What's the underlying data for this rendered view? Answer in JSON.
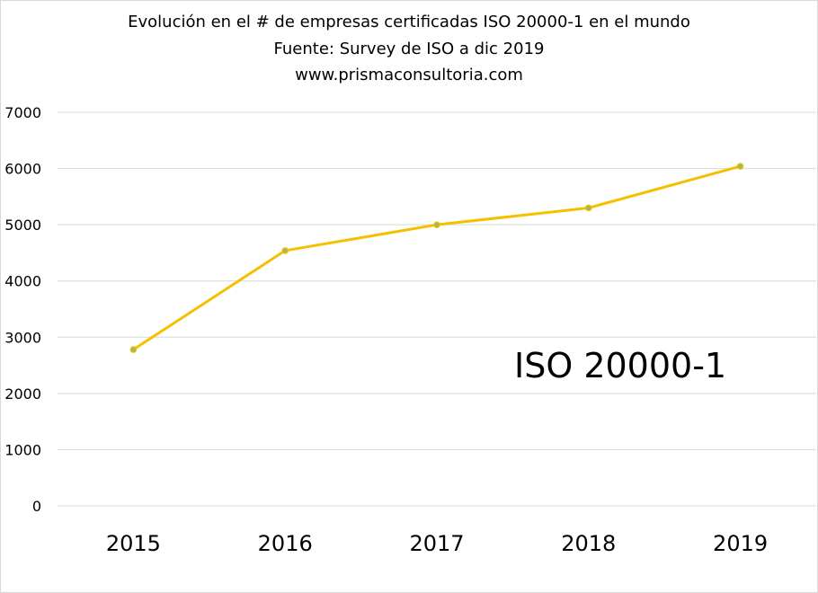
{
  "chart_data": {
    "type": "line",
    "title": "Evolución en el  # de empresas certificadas ISO 20000-1 en el mundo",
    "subtitle": "Fuente: Survey de ISO a dic 2019",
    "source_url": "www.prismaconsultoria.com",
    "annotation": "ISO 20000-1",
    "categories": [
      "2015",
      "2016",
      "2017",
      "2018",
      "2019"
    ],
    "series": [
      {
        "values": [
          2780,
          4540,
          5000,
          5300,
          6040
        ],
        "color": "#f5c000",
        "marker_color": "#9dbb61"
      }
    ],
    "yticks": [
      "0",
      "1000",
      "2000",
      "3000",
      "4000",
      "5000",
      "6000",
      "7000"
    ],
    "ylim": [
      0,
      7000
    ],
    "grid": true,
    "legend": "none",
    "xlabel": "",
    "ylabel": ""
  }
}
